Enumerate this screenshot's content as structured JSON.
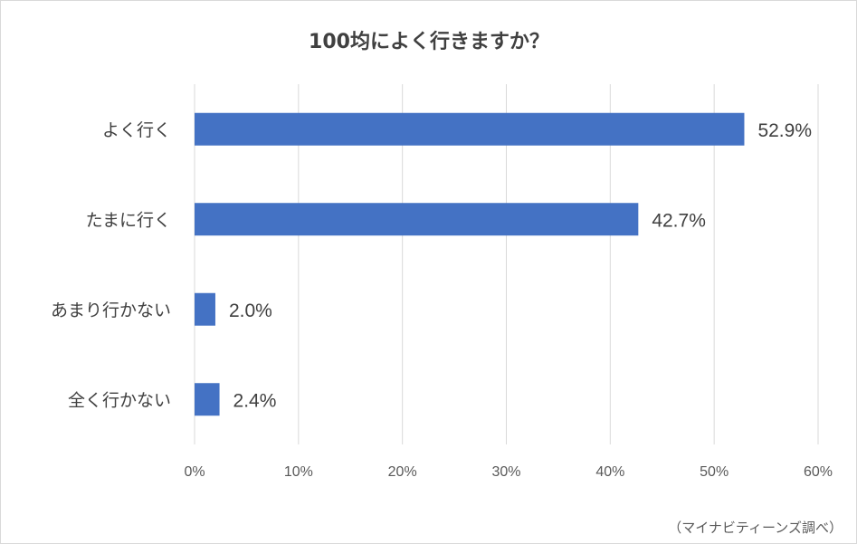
{
  "chart_data": {
    "type": "bar",
    "orientation": "horizontal",
    "title": "100均によく行きますか？",
    "categories": [
      "よく行く",
      "たまに行く",
      "あまり行かない",
      "全く行かない"
    ],
    "values": [
      52.9,
      42.7,
      2.0,
      2.4
    ],
    "value_labels": [
      "52.9%",
      "42.7%",
      "2.0%",
      "2.4%"
    ],
    "xlim": [
      0,
      60
    ],
    "x_ticks": [
      0,
      10,
      20,
      30,
      40,
      50,
      60
    ],
    "x_tick_labels": [
      "0%",
      "10%",
      "20%",
      "30%",
      "40%",
      "50%",
      "60%"
    ],
    "grid": true,
    "bar_color": "#4472c4",
    "source_note": "（マイナビティーンズ調べ）"
  }
}
